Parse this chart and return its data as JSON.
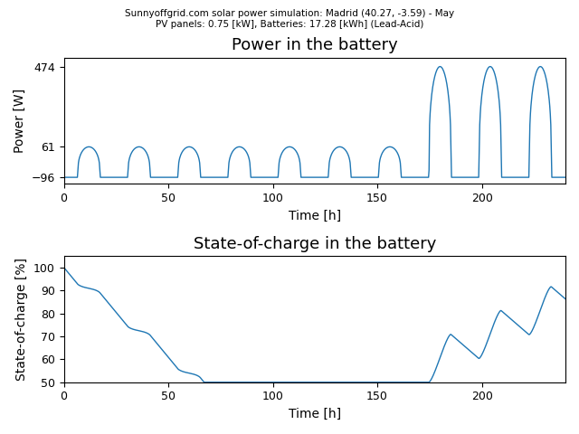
{
  "title_suptitle_line1": "Sunnyoffgrid.com solar power simulation: Madrid (40.27, -3.59) - May",
  "title_suptitle_line2": "PV panels: 0.75 [kW], Batteries: 17.28 [kWh] (Lead-Acid)",
  "plot1_title": "Power in the battery",
  "plot2_title": "State-of-charge in the battery",
  "xlabel": "Time [h]",
  "ylabel1": "Power [W]",
  "ylabel2": "State-of-charge [%]",
  "line_color": "#1f77b4",
  "ylim1": [
    -130,
    520
  ],
  "ylim2": [
    50,
    105
  ],
  "yticks1": [
    -96,
    61,
    474
  ],
  "yticks2": [
    50,
    60,
    70,
    80,
    90,
    100
  ],
  "xticks": [
    0,
    50,
    100,
    150,
    200
  ],
  "figsize": [
    6.4,
    4.8
  ],
  "dpi": 100,
  "total_hours": 240,
  "day_period": 24.0,
  "transition_hour": 175,
  "small_peak": 61,
  "large_peak": 474,
  "baseline": -96,
  "soc_start": 100,
  "soc_min": 50,
  "soc_max": 100
}
